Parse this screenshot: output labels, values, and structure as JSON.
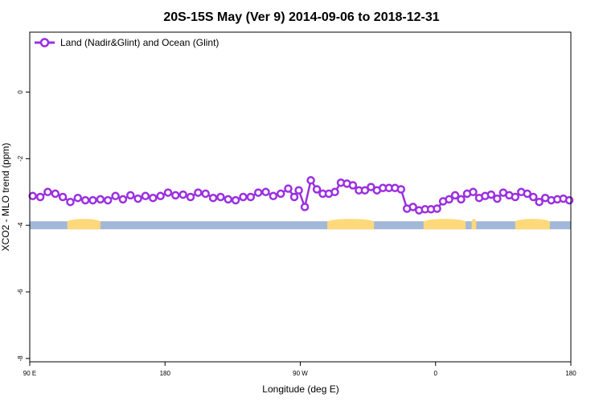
{
  "chart_data": {
    "type": "line",
    "title": "20S-15S May (Ver 9)   2014-09-06 to 2018-12-31",
    "xlabel": "Longitude (deg E)",
    "ylabel": "XCO2 - MLO trend (ppm)",
    "xlim": [
      90,
      450
    ],
    "ylim": [
      -8.1,
      1.8
    ],
    "x_ticks": [
      {
        "value": 90,
        "label": "90 E"
      },
      {
        "value": 180,
        "label": "180"
      },
      {
        "value": 270,
        "label": "90 W"
      },
      {
        "value": 360,
        "label": "0"
      },
      {
        "value": 450,
        "label": "180"
      }
    ],
    "y_ticks": [
      {
        "value": 0,
        "label": "0"
      },
      {
        "value": -2,
        "label": "-2"
      },
      {
        "value": -4,
        "label": "-4"
      },
      {
        "value": -6,
        "label": "-6"
      },
      {
        "value": -8,
        "label": "-8"
      }
    ],
    "grid": false,
    "legend_position": "top-left",
    "series": [
      {
        "name": "Land (Nadir&Glint) and Ocean (Glint)",
        "color": "#9b30e0",
        "points": [
          [
            92,
            -3.12
          ],
          [
            97,
            -3.15
          ],
          [
            102,
            -3.0
          ],
          [
            107,
            -3.05
          ],
          [
            112,
            -3.15
          ],
          [
            117,
            -3.3
          ],
          [
            122,
            -3.18
          ],
          [
            127,
            -3.25
          ],
          [
            132,
            -3.25
          ],
          [
            137,
            -3.22
          ],
          [
            142,
            -3.25
          ],
          [
            147,
            -3.12
          ],
          [
            152,
            -3.22
          ],
          [
            157,
            -3.1
          ],
          [
            162,
            -3.2
          ],
          [
            167,
            -3.12
          ],
          [
            172,
            -3.18
          ],
          [
            177,
            -3.12
          ],
          [
            182,
            -3.02
          ],
          [
            187,
            -3.1
          ],
          [
            192,
            -3.08
          ],
          [
            197,
            -3.15
          ],
          [
            202,
            -3.02
          ],
          [
            207,
            -3.05
          ],
          [
            212,
            -3.18
          ],
          [
            217,
            -3.15
          ],
          [
            222,
            -3.22
          ],
          [
            227,
            -3.25
          ],
          [
            232,
            -3.15
          ],
          [
            237,
            -3.15
          ],
          [
            242,
            -3.02
          ],
          [
            247,
            -3.0
          ],
          [
            252,
            -3.12
          ],
          [
            257,
            -3.05
          ],
          [
            262,
            -2.9
          ],
          [
            266,
            -3.15
          ],
          [
            269,
            -2.95
          ],
          [
            273,
            -3.45
          ],
          [
            277,
            -2.65
          ],
          [
            281,
            -2.92
          ],
          [
            285,
            -3.05
          ],
          [
            289,
            -3.05
          ],
          [
            293,
            -3.0
          ],
          [
            297,
            -2.72
          ],
          [
            301,
            -2.75
          ],
          [
            305,
            -2.8
          ],
          [
            309,
            -2.95
          ],
          [
            313,
            -2.95
          ],
          [
            317,
            -2.85
          ],
          [
            321,
            -2.95
          ],
          [
            325,
            -2.88
          ],
          [
            329,
            -2.88
          ],
          [
            333,
            -2.88
          ],
          [
            337,
            -2.92
          ],
          [
            341,
            -3.5
          ],
          [
            345,
            -3.45
          ],
          [
            349,
            -3.55
          ],
          [
            353,
            -3.52
          ],
          [
            357,
            -3.52
          ],
          [
            361,
            -3.5
          ],
          [
            365,
            -3.28
          ],
          [
            369,
            -3.22
          ],
          [
            373,
            -3.1
          ],
          [
            377,
            -3.22
          ],
          [
            381,
            -3.05
          ],
          [
            385,
            -3.0
          ],
          [
            389,
            -3.18
          ],
          [
            393,
            -3.12
          ],
          [
            397,
            -3.08
          ],
          [
            401,
            -3.2
          ],
          [
            405,
            -3.02
          ],
          [
            409,
            -3.1
          ],
          [
            413,
            -3.15
          ],
          [
            417,
            -3.0
          ],
          [
            421,
            -3.05
          ],
          [
            425,
            -3.15
          ],
          [
            429,
            -3.3
          ],
          [
            433,
            -3.18
          ],
          [
            437,
            -3.25
          ],
          [
            441,
            -3.22
          ],
          [
            445,
            -3.2
          ],
          [
            449,
            -3.25
          ]
        ]
      }
    ],
    "surface_bar": {
      "y_level": -4.0,
      "ocean_color": "#a3b8d8",
      "land_color": "#ffd97a",
      "land_ranges": [
        [
          115,
          137
        ],
        [
          288,
          319
        ],
        [
          352,
          380
        ],
        [
          384,
          387
        ],
        [
          413,
          436
        ]
      ]
    }
  }
}
